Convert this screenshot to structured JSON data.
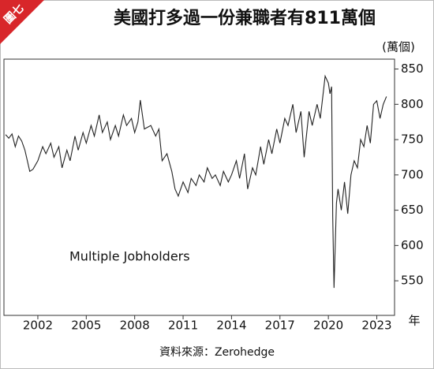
{
  "badge": "圖七",
  "chart_data": {
    "type": "line",
    "title": "美國打多過一份兼職者有811萬個",
    "y_label": "(萬個)",
    "x_label": "年",
    "annotation": "Multiple Jobholders",
    "source": "資料來源：Zerohedge",
    "xlim": [
      1999.9,
      2024.1
    ],
    "xticks": [
      2002,
      2005,
      2008,
      2011,
      2014,
      2017,
      2020,
      2023
    ],
    "ylim": [
      501,
      864
    ],
    "yticks": [
      550,
      600,
      650,
      700,
      750,
      800,
      850
    ],
    "series": [
      {
        "name": "Multiple Jobholders",
        "color": "#222222",
        "x": [
          2000.0,
          2000.2,
          2000.4,
          2000.6,
          2000.8,
          2001.0,
          2001.2,
          2001.5,
          2001.7,
          2002.0,
          2002.3,
          2002.5,
          2002.8,
          2003.0,
          2003.3,
          2003.5,
          2003.8,
          2004.0,
          2004.3,
          2004.5,
          2004.8,
          2005.0,
          2005.3,
          2005.5,
          2005.8,
          2006.0,
          2006.3,
          2006.5,
          2006.8,
          2007.0,
          2007.3,
          2007.5,
          2007.8,
          2008.0,
          2008.2,
          2008.35,
          2008.6,
          2009.0,
          2009.3,
          2009.5,
          2009.7,
          2010.0,
          2010.3,
          2010.5,
          2010.7,
          2011.0,
          2011.3,
          2011.5,
          2011.8,
          2012.0,
          2012.3,
          2012.5,
          2012.8,
          2013.0,
          2013.3,
          2013.5,
          2013.8,
          2014.0,
          2014.3,
          2014.5,
          2014.8,
          2015.0,
          2015.3,
          2015.5,
          2015.8,
          2016.0,
          2016.3,
          2016.5,
          2016.8,
          2017.0,
          2017.3,
          2017.5,
          2017.8,
          2018.0,
          2018.3,
          2018.5,
          2018.8,
          2019.0,
          2019.3,
          2019.5,
          2019.8,
          2020.0,
          2020.1,
          2020.2,
          2020.27,
          2020.35,
          2020.5,
          2020.6,
          2020.8,
          2021.0,
          2021.2,
          2021.4,
          2021.6,
          2021.8,
          2022.0,
          2022.2,
          2022.4,
          2022.6,
          2022.8,
          2023.0,
          2023.2,
          2023.4,
          2023.6
        ],
        "values": [
          757,
          752,
          758,
          740,
          755,
          748,
          735,
          705,
          708,
          720,
          740,
          730,
          745,
          725,
          740,
          710,
          735,
          720,
          755,
          735,
          760,
          745,
          770,
          755,
          785,
          760,
          775,
          750,
          770,
          755,
          785,
          770,
          780,
          760,
          775,
          806,
          765,
          770,
          755,
          765,
          720,
          730,
          705,
          680,
          670,
          690,
          675,
          695,
          685,
          700,
          690,
          710,
          695,
          700,
          685,
          705,
          690,
          700,
          720,
          695,
          730,
          680,
          710,
          700,
          740,
          715,
          750,
          730,
          765,
          745,
          780,
          770,
          800,
          760,
          790,
          725,
          790,
          770,
          800,
          780,
          840,
          830,
          815,
          825,
          640,
          540,
          660,
          680,
          650,
          690,
          645,
          700,
          720,
          710,
          750,
          740,
          770,
          745,
          800,
          805,
          780,
          800,
          811
        ]
      }
    ]
  }
}
